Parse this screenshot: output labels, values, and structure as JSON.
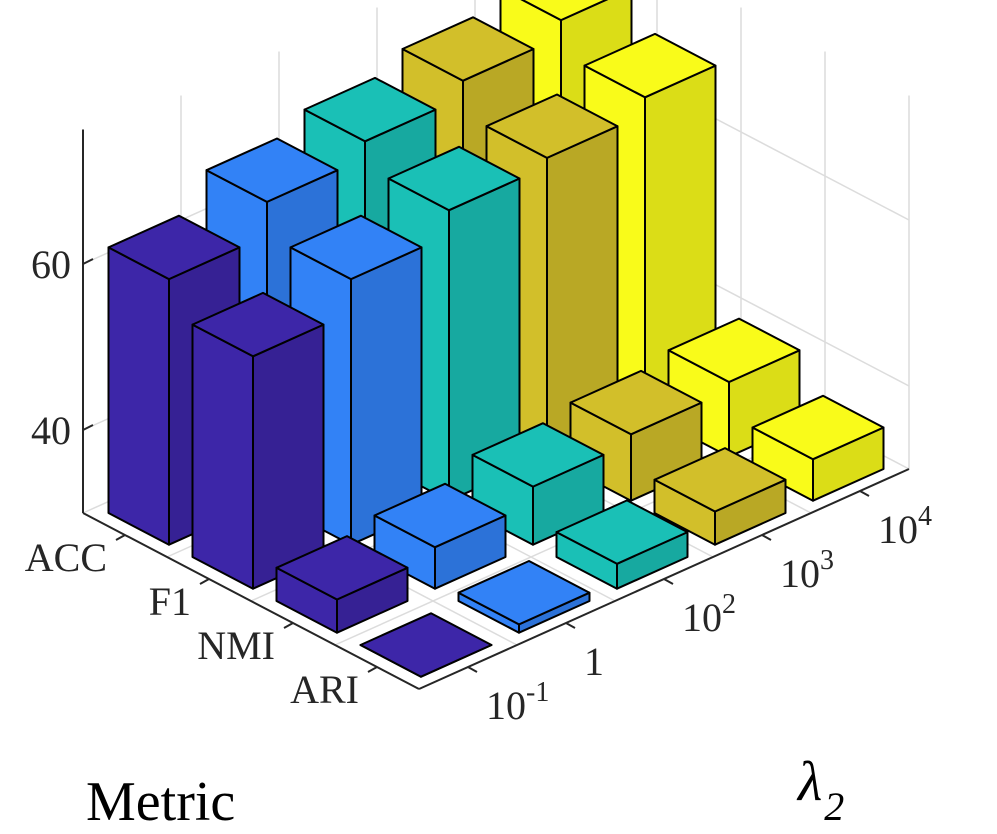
{
  "chart_data": {
    "type": "bar3d",
    "x_categories": [
      "ACC",
      "F1",
      "NMI",
      "ARI"
    ],
    "y_categories": [
      "10^-1",
      "1",
      "10^2",
      "10^3",
      "10^4"
    ],
    "xlabel": "Metric",
    "ylabel": "λ2",
    "zticks": [
      40,
      60
    ],
    "zlim": [
      30,
      75
    ],
    "grid": true,
    "series_colors": [
      "#3d26a8",
      "#3282f6",
      "#1ac0b6",
      "#d2bf2a",
      "#f9fb1a"
    ],
    "values": [
      [
        62,
        58,
        34,
        30
      ],
      [
        66,
        62,
        35,
        31
      ],
      [
        68,
        65,
        37,
        33
      ],
      [
        70,
        66,
        38,
        34
      ],
      [
        72,
        68,
        39,
        35
      ]
    ]
  }
}
